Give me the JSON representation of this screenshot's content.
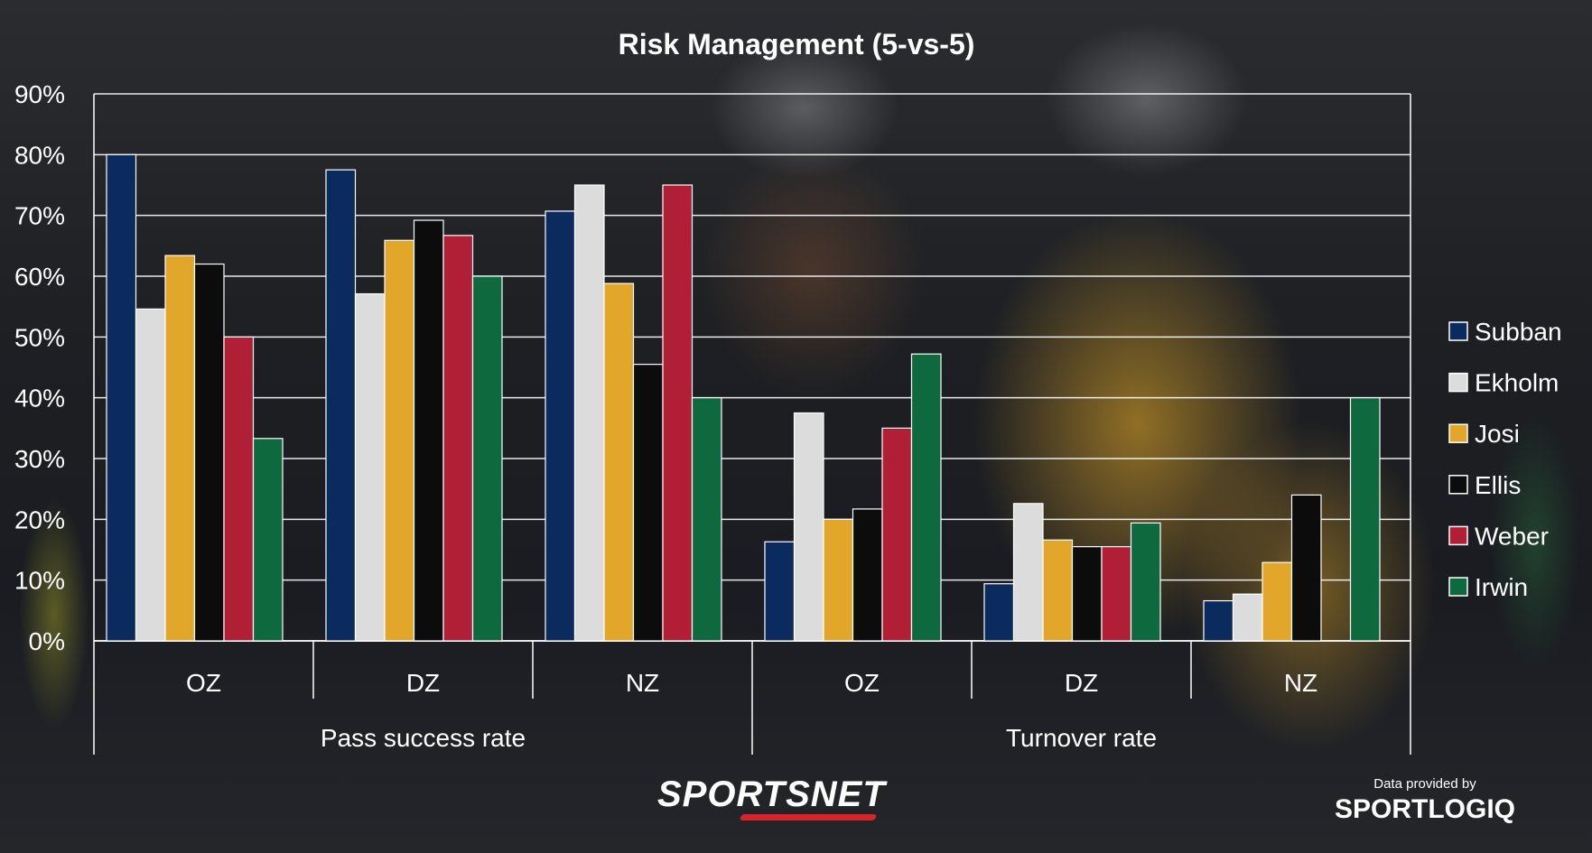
{
  "chart_data": {
    "type": "bar",
    "title": "Risk Management (5-vs-5)",
    "groups": [
      {
        "label": "Pass success rate",
        "categories": [
          "OZ",
          "DZ",
          "NZ"
        ]
      },
      {
        "label": "Turnover rate",
        "categories": [
          "OZ",
          "DZ",
          "NZ"
        ]
      }
    ],
    "categories": [
      "OZ",
      "DZ",
      "NZ",
      "OZ",
      "DZ",
      "NZ"
    ],
    "y_ticks": [
      "0%",
      "10%",
      "20%",
      "30%",
      "40%",
      "50%",
      "60%",
      "70%",
      "80%",
      "90%"
    ],
    "ylim": [
      0,
      90
    ],
    "y_unit": "%",
    "grid": true,
    "legend_position": "right",
    "series": [
      {
        "name": "Subban",
        "color": "#0b2a5e",
        "values": [
          80,
          77.5,
          70.7,
          16.3,
          9.4,
          6.6
        ]
      },
      {
        "name": "Ekholm",
        "color": "#dcdcdc",
        "values": [
          54.6,
          57.1,
          75,
          37.5,
          22.6,
          7.7
        ]
      },
      {
        "name": "Josi",
        "color": "#e2a62a",
        "values": [
          63.4,
          65.9,
          58.8,
          20,
          16.6,
          12.9
        ]
      },
      {
        "name": "Ellis",
        "color": "#0c0c0c",
        "values": [
          62,
          69.2,
          45.5,
          21.7,
          15.5,
          24
        ]
      },
      {
        "name": "Weber",
        "color": "#b01f35",
        "values": [
          50,
          66.7,
          75,
          35,
          15.5,
          0
        ]
      },
      {
        "name": "Irwin",
        "color": "#0e6a3e",
        "values": [
          33.3,
          60,
          40,
          47.2,
          19.4,
          40
        ]
      }
    ]
  },
  "branding": {
    "sportsnet_logo": "SPORTSNET",
    "credit_text": "Data provided by",
    "sportlogiq_logo": "SPORTLOGIQ"
  }
}
